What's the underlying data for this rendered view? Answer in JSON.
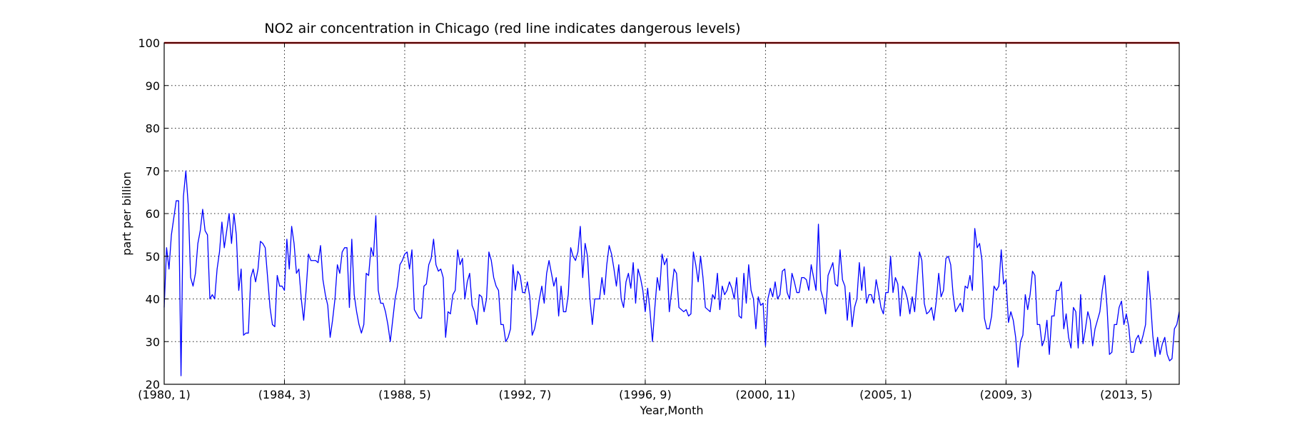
{
  "chart_data": {
    "type": "line",
    "title": "NO2 air concentration in Chicago (red line indicates dangerous levels)",
    "xlabel": "Year,Month",
    "ylabel": "part per billion",
    "ylim": [
      20,
      100
    ],
    "yticks": [
      20,
      30,
      40,
      50,
      60,
      70,
      80,
      90,
      100
    ],
    "x_tick_labels": [
      "(1980, 1)",
      "(1984, 3)",
      "(1988, 5)",
      "(1992, 7)",
      "(1996, 9)",
      "(2000, 11)",
      "(2005, 1)",
      "(2009, 3)",
      "(2013, 5)"
    ],
    "x_tick_indices": [
      0,
      50,
      100,
      150,
      200,
      250,
      300,
      350,
      400
    ],
    "x_start": "1980-01",
    "x_end": "2014-12",
    "grid": true,
    "reference_line": {
      "y": 100,
      "color": "#cc0000"
    },
    "series": [
      {
        "color": "#0000ff",
        "values": [
          38,
          52,
          47,
          55,
          59,
          63,
          63,
          22,
          64,
          70,
          62,
          45,
          43,
          46,
          53,
          56,
          61,
          56,
          55,
          40,
          41,
          40,
          47,
          51,
          58,
          52,
          56,
          60,
          53,
          60,
          55,
          42,
          47,
          31.5,
          32,
          32,
          45,
          47,
          44,
          47,
          53.5,
          53,
          52,
          45,
          38,
          34,
          33.5,
          45.5,
          43,
          43,
          42,
          54,
          47,
          57,
          53,
          46,
          47,
          40,
          35,
          42,
          50.5,
          49,
          49,
          49,
          48.5,
          52.5,
          44.5,
          41,
          38.5,
          31,
          35,
          40,
          48,
          46,
          51,
          52,
          52,
          38,
          54,
          41,
          37,
          34,
          32,
          34,
          46,
          45.5,
          52,
          50,
          59.5,
          42,
          39,
          39,
          37,
          34,
          30,
          35,
          40,
          43,
          48,
          49,
          50.5,
          51,
          47,
          51.5,
          37.5,
          36.5,
          35.5,
          35.5,
          43,
          43.5,
          48,
          49.5,
          54,
          48,
          46.5,
          47,
          45,
          31,
          37,
          36.5,
          41,
          42,
          51.5,
          48,
          49.5,
          40,
          44,
          46,
          38.5,
          37,
          34,
          41,
          40.5,
          37,
          40,
          51,
          49,
          45,
          43,
          42,
          34,
          34,
          30,
          31,
          33,
          48,
          42,
          46.5,
          45.5,
          41.5,
          41.5,
          44,
          40.5,
          31.5,
          33,
          36,
          40,
          43,
          39,
          46,
          49,
          46,
          43,
          45,
          36,
          43,
          37,
          37,
          41,
          52,
          50,
          49,
          51,
          57,
          45,
          53,
          50,
          40,
          34,
          40,
          40,
          40,
          45,
          41,
          48,
          52.5,
          50.5,
          47,
          43,
          48,
          40,
          38,
          44,
          46,
          42.5,
          48.5,
          39,
          47,
          45,
          42,
          37,
          42.5,
          37,
          30,
          38,
          45,
          42,
          50.5,
          48,
          49.5,
          37,
          42,
          47,
          46,
          38,
          37.5,
          37,
          37.5,
          36,
          36.5,
          51,
          48,
          44,
          50,
          45,
          38,
          37.5,
          37,
          41,
          40,
          46,
          37.5,
          43,
          41,
          42,
          44,
          42.5,
          40,
          45,
          36,
          35.5,
          46,
          39,
          48,
          42,
          40,
          33,
          40.5,
          38.5,
          39,
          29,
          40,
          42.5,
          40.5,
          44,
          40,
          41,
          46.5,
          47,
          41.5,
          40,
          46,
          44,
          41.5,
          41.5,
          45,
          45,
          44.5,
          42,
          48,
          45,
          42,
          57.5,
          42,
          40,
          36.5,
          45.5,
          47,
          48.5,
          43.5,
          43,
          51.5,
          44.5,
          43,
          35,
          41.5,
          33.5,
          38,
          40,
          48.5,
          42,
          47.5,
          39,
          41,
          41,
          39,
          44.5,
          41.5,
          38,
          36.5,
          41.5,
          41.5,
          50,
          41.5,
          45,
          43.5,
          36,
          43,
          42,
          40,
          36.5,
          40.5,
          37,
          44,
          51,
          49,
          39,
          36.5,
          37,
          38,
          35,
          39.5,
          46,
          40.5,
          42,
          49.5,
          50,
          48,
          41,
          37,
          38,
          39,
          37,
          43,
          42.5,
          45.5,
          42,
          56.5,
          52,
          53,
          49,
          35.5,
          33,
          33,
          36,
          43,
          42,
          43,
          51.5,
          43.5,
          44.5,
          34.5,
          37,
          35,
          31,
          24,
          30,
          31.5,
          41,
          37.5,
          41,
          46.5,
          45.5,
          34,
          34,
          29,
          30.5,
          35,
          27,
          36,
          36,
          42,
          42,
          44,
          33,
          36.5,
          31,
          28.5,
          38,
          37,
          28.5,
          41,
          29.5,
          33,
          37,
          35,
          29,
          33,
          35,
          37,
          42,
          45.5,
          38,
          27,
          27.5,
          34,
          34,
          38,
          39.5,
          34,
          36.5,
          33.5,
          27.5,
          27.5,
          30.5,
          31.5,
          29.5,
          31.5,
          34,
          46.5,
          40,
          31.5,
          26.5,
          31,
          27,
          29.5,
          31,
          27,
          25.5,
          26,
          33,
          34,
          37
        ]
      }
    ]
  }
}
